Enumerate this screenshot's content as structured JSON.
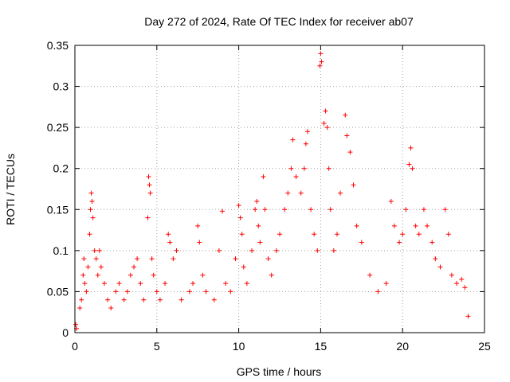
{
  "chart_data": {
    "type": "scatter",
    "title": "Day 272 of 2024, Rate Of TEC Index for receiver ab07",
    "xlabel": "GPS time / hours",
    "ylabel": "ROTI / TECUs",
    "xlim": [
      0,
      25
    ],
    "ylim": [
      0,
      0.35
    ],
    "xticks": [
      "0",
      "5",
      "10",
      "15",
      "20",
      "25"
    ],
    "yticks": [
      "0",
      "0.05",
      "0.1",
      "0.15",
      "0.2",
      "0.25",
      "0.3",
      "0.35"
    ],
    "grid": true,
    "marker": "+",
    "marker_color": "#ff0000",
    "series": [
      {
        "name": "ROTI",
        "points": [
          [
            0.05,
            0.01
          ],
          [
            0.1,
            0.005
          ],
          [
            0.3,
            0.03
          ],
          [
            0.4,
            0.04
          ],
          [
            0.5,
            0.07
          ],
          [
            0.55,
            0.09
          ],
          [
            0.6,
            0.06
          ],
          [
            0.7,
            0.05
          ],
          [
            0.8,
            0.08
          ],
          [
            0.9,
            0.12
          ],
          [
            0.95,
            0.15
          ],
          [
            1.0,
            0.17
          ],
          [
            1.05,
            0.16
          ],
          [
            1.1,
            0.14
          ],
          [
            1.2,
            0.1
          ],
          [
            1.3,
            0.09
          ],
          [
            1.4,
            0.07
          ],
          [
            1.5,
            0.1
          ],
          [
            1.6,
            0.08
          ],
          [
            1.8,
            0.06
          ],
          [
            2.0,
            0.04
          ],
          [
            2.2,
            0.03
          ],
          [
            2.5,
            0.05
          ],
          [
            2.7,
            0.06
          ],
          [
            3.0,
            0.04
          ],
          [
            3.2,
            0.05
          ],
          [
            3.4,
            0.07
          ],
          [
            3.6,
            0.08
          ],
          [
            3.8,
            0.09
          ],
          [
            4.0,
            0.06
          ],
          [
            4.2,
            0.04
          ],
          [
            4.45,
            0.14
          ],
          [
            4.5,
            0.19
          ],
          [
            4.55,
            0.18
          ],
          [
            4.6,
            0.17
          ],
          [
            4.7,
            0.09
          ],
          [
            4.8,
            0.07
          ],
          [
            5.0,
            0.05
          ],
          [
            5.2,
            0.04
          ],
          [
            5.5,
            0.06
          ],
          [
            5.7,
            0.12
          ],
          [
            5.8,
            0.11
          ],
          [
            6.0,
            0.09
          ],
          [
            6.2,
            0.1
          ],
          [
            6.5,
            0.04
          ],
          [
            7.0,
            0.05
          ],
          [
            7.2,
            0.06
          ],
          [
            7.5,
            0.13
          ],
          [
            7.6,
            0.11
          ],
          [
            7.8,
            0.07
          ],
          [
            8.0,
            0.05
          ],
          [
            8.5,
            0.04
          ],
          [
            8.8,
            0.1
          ],
          [
            9.0,
            0.148
          ],
          [
            9.2,
            0.06
          ],
          [
            9.5,
            0.05
          ],
          [
            9.8,
            0.09
          ],
          [
            10.0,
            0.155
          ],
          [
            10.1,
            0.14
          ],
          [
            10.2,
            0.12
          ],
          [
            10.3,
            0.08
          ],
          [
            10.5,
            0.06
          ],
          [
            10.8,
            0.1
          ],
          [
            11.0,
            0.15
          ],
          [
            11.1,
            0.16
          ],
          [
            11.2,
            0.13
          ],
          [
            11.3,
            0.11
          ],
          [
            11.5,
            0.19
          ],
          [
            11.6,
            0.15
          ],
          [
            11.8,
            0.09
          ],
          [
            12.0,
            0.07
          ],
          [
            12.3,
            0.1
          ],
          [
            12.5,
            0.12
          ],
          [
            12.8,
            0.15
          ],
          [
            13.0,
            0.17
          ],
          [
            13.2,
            0.2
          ],
          [
            13.3,
            0.235
          ],
          [
            13.5,
            0.19
          ],
          [
            13.8,
            0.17
          ],
          [
            14.0,
            0.2
          ],
          [
            14.1,
            0.23
          ],
          [
            14.2,
            0.245
          ],
          [
            14.4,
            0.15
          ],
          [
            14.6,
            0.12
          ],
          [
            14.8,
            0.1
          ],
          [
            14.95,
            0.325
          ],
          [
            15.0,
            0.34
          ],
          [
            15.05,
            0.33
          ],
          [
            15.2,
            0.255
          ],
          [
            15.3,
            0.27
          ],
          [
            15.4,
            0.25
          ],
          [
            15.5,
            0.2
          ],
          [
            15.6,
            0.15
          ],
          [
            15.8,
            0.1
          ],
          [
            16.0,
            0.12
          ],
          [
            16.2,
            0.17
          ],
          [
            16.5,
            0.265
          ],
          [
            16.6,
            0.24
          ],
          [
            16.8,
            0.22
          ],
          [
            17.0,
            0.18
          ],
          [
            17.2,
            0.13
          ],
          [
            17.5,
            0.11
          ],
          [
            18.0,
            0.07
          ],
          [
            18.5,
            0.05
          ],
          [
            19.0,
            0.06
          ],
          [
            19.3,
            0.16
          ],
          [
            19.5,
            0.13
          ],
          [
            19.8,
            0.11
          ],
          [
            20.0,
            0.12
          ],
          [
            20.2,
            0.15
          ],
          [
            20.4,
            0.205
          ],
          [
            20.5,
            0.225
          ],
          [
            20.6,
            0.2
          ],
          [
            20.8,
            0.13
          ],
          [
            21.0,
            0.12
          ],
          [
            21.3,
            0.15
          ],
          [
            21.5,
            0.13
          ],
          [
            21.8,
            0.11
          ],
          [
            22.0,
            0.09
          ],
          [
            22.3,
            0.08
          ],
          [
            22.6,
            0.15
          ],
          [
            22.8,
            0.12
          ],
          [
            23.0,
            0.07
          ],
          [
            23.3,
            0.06
          ],
          [
            23.6,
            0.065
          ],
          [
            23.8,
            0.055
          ],
          [
            24.0,
            0.02
          ]
        ]
      }
    ]
  }
}
